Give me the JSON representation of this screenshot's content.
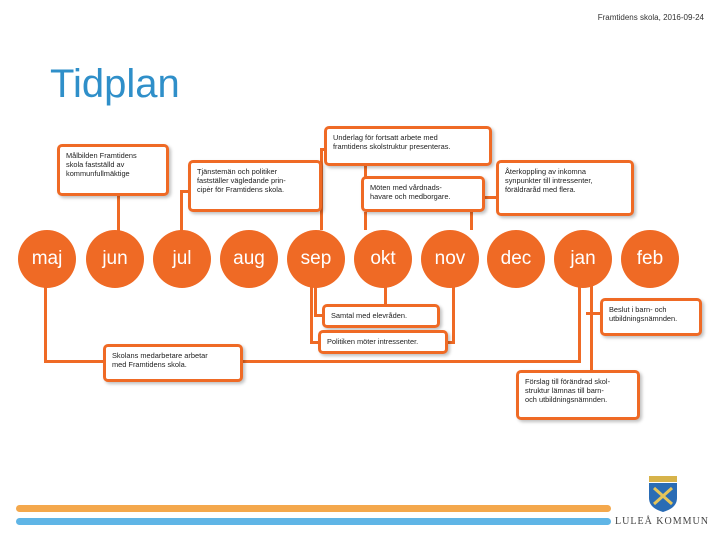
{
  "header_note": "Framtidens skola, 2016-09-24",
  "title": "Tidplan",
  "months": [
    "maj",
    "jun",
    "jul",
    "aug",
    "sep",
    "okt",
    "nov",
    "dec",
    "jan",
    "feb"
  ],
  "notes": {
    "malbilden": "Målbilden Framtidens\nskola fastställd av\nkommunfullmäktige",
    "tjansteman": "Tjänstemän och politiker\nfastställer vägledande prin-\ncipėr för Framtidens skola.",
    "underlag": "Underlag för fortsatt arbete med\nframtidens skolstruktur presenteras.",
    "moten": "Möten med vårdnads-\nhavare och medborgare.",
    "aterkoppling": "Återkoppling av inkomna\nsynpunkter till intressenter,\nföräldraråd med flera.",
    "samtal": "Samtal med elevråden.",
    "politiken": "Politiken möter intressenter.",
    "beslut": "Beslut i barn- och\nutbildningsnämnden.",
    "skolans": "Skolans medarbetare arbetar\nmed Framtidens skola.",
    "forslag": "Förslag till förändrad skol-\nstruktur lämnas till barn-\noch utbildningsnämnden."
  },
  "logo_text": "LULEÅ KOMMUN",
  "colors": {
    "accent": "#ef6a25",
    "title": "#2f8fc9",
    "bar_orange": "#f4a84c",
    "bar_blue": "#5fb5e6"
  }
}
